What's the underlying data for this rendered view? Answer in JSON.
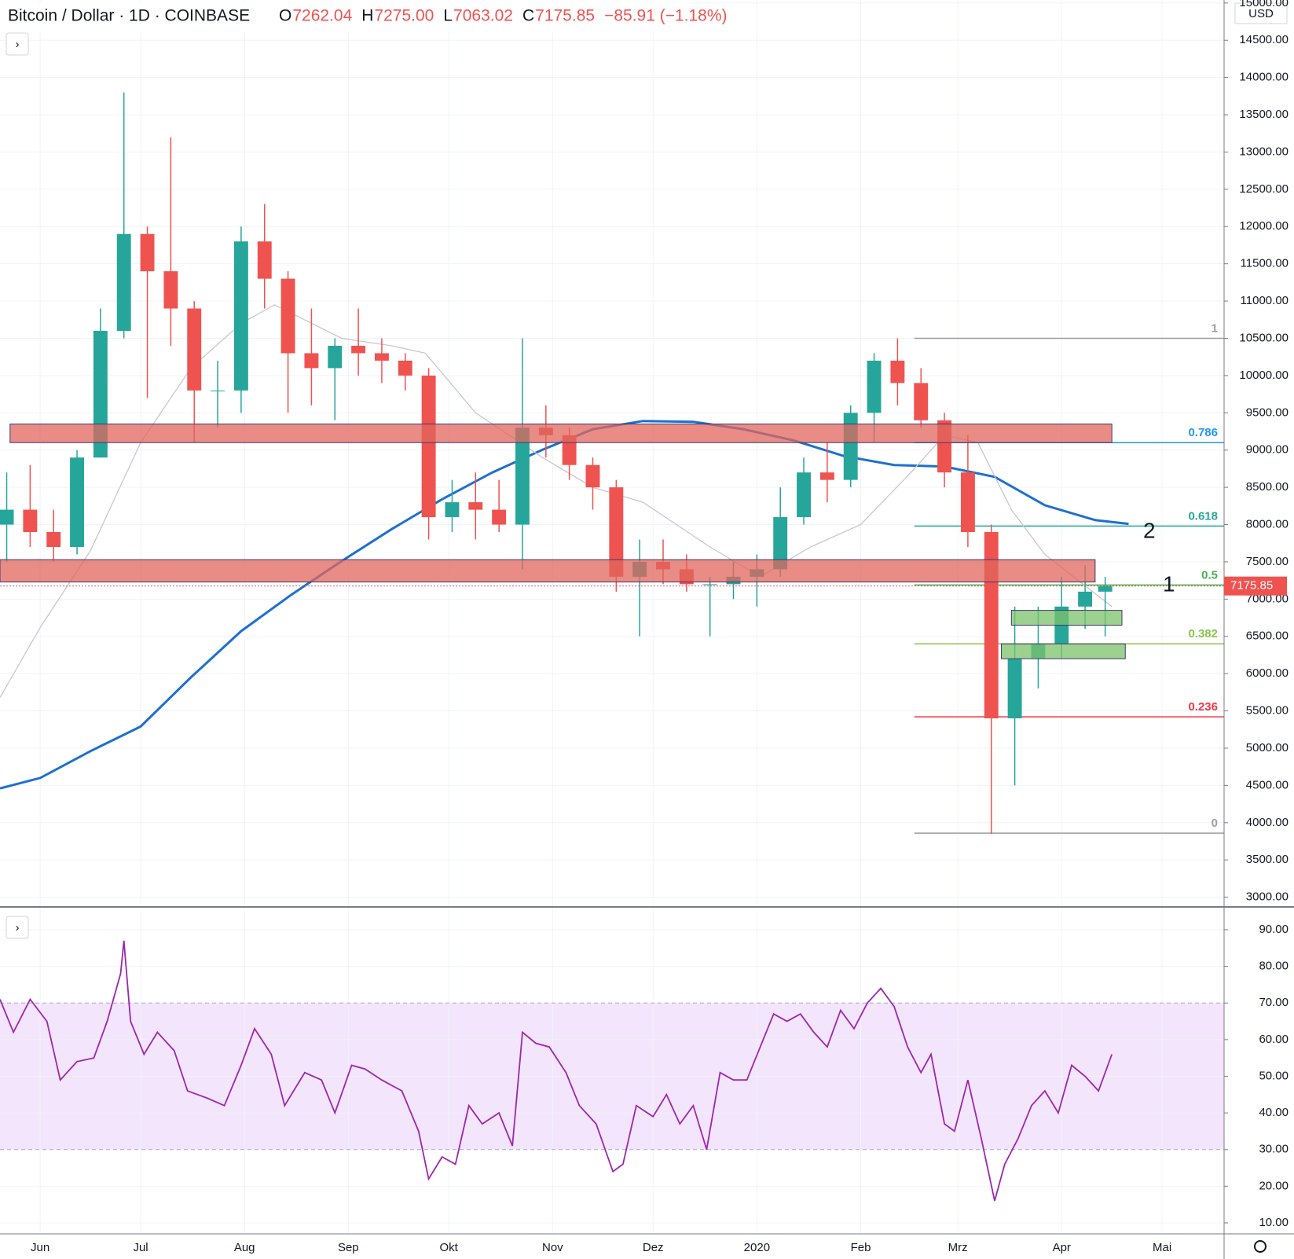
{
  "header": {
    "title": "Bitcoin / Dollar · 1D · COINBASE",
    "ohlc": [
      {
        "key": "O",
        "value": "7262.04"
      },
      {
        "key": "H",
        "value": "7275.00"
      },
      {
        "key": "L",
        "value": "7063.02"
      },
      {
        "key": "C",
        "value": "7175.85"
      }
    ],
    "change": "−85.91 (−1.18%)",
    "currency": "USD",
    "annotations": [
      "1",
      "2"
    ]
  },
  "chart_data": [
    {
      "type": "candlestick",
      "up_color": "#26a69a",
      "down_color": "#ef5350",
      "x": [
        -10,
        -3,
        4,
        11,
        18,
        25,
        32,
        39,
        46,
        53,
        60,
        67,
        74,
        81,
        88,
        95,
        102,
        109,
        116,
        123,
        130,
        137,
        144,
        151,
        158,
        165,
        172,
        179,
        186,
        193,
        200,
        207,
        214,
        221,
        228,
        235,
        242,
        249,
        256,
        263,
        270,
        277,
        284,
        291,
        298,
        305,
        312,
        318
      ],
      "open": [
        8000,
        8200,
        7900,
        7700,
        8900,
        10600,
        11900,
        11400,
        10900,
        9800,
        9800,
        11800,
        11300,
        10300,
        10100,
        10400,
        10300,
        10200,
        10000,
        8100,
        8300,
        8200,
        8000,
        9300,
        9200,
        8800,
        8500,
        7300,
        7500,
        7400,
        7200,
        7200,
        7300,
        7400,
        8100,
        8700,
        8600,
        9500,
        10200,
        9900,
        9400,
        8700,
        7900,
        5400,
        6200,
        6400,
        6900,
        7100
      ],
      "high": [
        8700,
        8800,
        8200,
        9000,
        10900,
        13800,
        12000,
        13200,
        11000,
        10200,
        12000,
        12300,
        11400,
        10900,
        10500,
        10900,
        10500,
        10300,
        10100,
        8600,
        8700,
        8600,
        10500,
        9600,
        9300,
        8900,
        8600,
        7800,
        7800,
        7600,
        7300,
        7500,
        7600,
        8500,
        8900,
        9100,
        9600,
        10300,
        10500,
        10100,
        9500,
        9200,
        8000,
        6900,
        6900,
        7300,
        7450,
        7300
      ],
      "low": [
        7500,
        7700,
        7500,
        7600,
        8900,
        10500,
        9700,
        10400,
        9100,
        9300,
        9500,
        10900,
        9500,
        9600,
        9400,
        10000,
        9900,
        9800,
        7800,
        7900,
        7800,
        7900,
        7400,
        8900,
        8600,
        8200,
        7100,
        6500,
        7200,
        7100,
        6500,
        7000,
        6900,
        7300,
        8000,
        8300,
        8500,
        9100,
        9600,
        9300,
        8500,
        7700,
        3850,
        4500,
        5800,
        6200,
        6600,
        6500
      ],
      "close": [
        8200,
        7900,
        7700,
        8900,
        10600,
        11900,
        11400,
        10900,
        9800,
        9800,
        11800,
        11300,
        10300,
        10100,
        10400,
        10300,
        10200,
        10000,
        8100,
        8300,
        8200,
        8000,
        9300,
        9200,
        8800,
        8500,
        7300,
        7500,
        7400,
        7200,
        7200,
        7300,
        7400,
        8100,
        8700,
        8600,
        9500,
        10200,
        9900,
        9400,
        8700,
        7900,
        5400,
        6200,
        6400,
        6900,
        7100,
        7175.85
      ],
      "overlays": [
        {
          "color": "#1e6fd0",
          "x": [
            -12,
            0,
            15,
            30,
            45,
            60,
            75,
            90,
            105,
            120,
            135,
            150,
            165,
            180,
            195,
            210,
            225,
            240,
            255,
            270,
            285,
            300,
            315,
            325
          ],
          "values": [
            4460,
            4600,
            4960,
            5290,
            5950,
            6570,
            7060,
            7510,
            7940,
            8340,
            8700,
            9005,
            9280,
            9390,
            9380,
            9280,
            9130,
            8920,
            8800,
            8780,
            8640,
            8260,
            8060,
            8010
          ]
        },
        {
          "color": "#c8c8cc",
          "x": [
            -12,
            0,
            15,
            30,
            45,
            60,
            70,
            90,
            105,
            115,
            130,
            150,
            165,
            180,
            200,
            215,
            230,
            245,
            260,
            270,
            280,
            290,
            300,
            320
          ],
          "values": [
            5680,
            6620,
            7650,
            9100,
            10100,
            10700,
            10950,
            10500,
            10400,
            10300,
            9500,
            8900,
            8500,
            8300,
            7700,
            7300,
            7700,
            8000,
            8700,
            9200,
            9100,
            8200,
            7600,
            6900
          ]
        }
      ],
      "zones": [
        {
          "low": 9100,
          "high": 9350,
          "start": -9,
          "end": 320,
          "color": "#e0665c"
        },
        {
          "low": 7230,
          "high": 7530,
          "start": -12,
          "end": 315,
          "color": "#e0665c"
        },
        {
          "low": 6650,
          "high": 6850,
          "start": 290,
          "end": 323,
          "color": "#7cc26a"
        },
        {
          "low": 6200,
          "high": 6400,
          "start": 287,
          "end": 324,
          "color": "#7cc26a"
        }
      ],
      "fib_start": 261,
      "fib_levels": [
        {
          "ratio": 1,
          "price": 10500,
          "color": "#9e9e9e"
        },
        {
          "ratio": 0.786,
          "price": 9100,
          "color": "#2196f3"
        },
        {
          "ratio": 0.618,
          "price": 7980,
          "color": "#26a69a"
        },
        {
          "ratio": 0.5,
          "price": 7190,
          "color": "#4caf50"
        },
        {
          "ratio": 0.382,
          "price": 6400,
          "color": "#8bc34a"
        },
        {
          "ratio": 0.236,
          "price": 5420,
          "color": "#f23645"
        },
        {
          "ratio": 0,
          "price": 3860,
          "color": "#9e9e9e"
        }
      ],
      "last_price": 7175.85,
      "xlim": [
        -12,
        353.5
      ],
      "ylim": [
        2880,
        15040
      ],
      "xticks": [
        {
          "value": 0,
          "label": "Jun"
        },
        {
          "value": 30,
          "label": "Jul"
        },
        {
          "value": 61,
          "label": "Aug"
        },
        {
          "value": 92,
          "label": "Sep"
        },
        {
          "value": 122,
          "label": "Okt"
        },
        {
          "value": 153,
          "label": "Nov"
        },
        {
          "value": 183,
          "label": "Dez"
        },
        {
          "value": 214,
          "label": "2020"
        },
        {
          "value": 245,
          "label": "Feb"
        },
        {
          "value": 274,
          "label": "Mrz"
        },
        {
          "value": 305,
          "label": "Apr"
        },
        {
          "value": 335,
          "label": "Mai"
        }
      ],
      "yticks": [
        {
          "value": 3000,
          "label": "3000.00"
        },
        {
          "value": 3500,
          "label": "3500.00"
        },
        {
          "value": 4000,
          "label": "4000.00"
        },
        {
          "value": 4500,
          "label": "4500.00"
        },
        {
          "value": 5000,
          "label": "5000.00"
        },
        {
          "value": 5500,
          "label": "5500.00"
        },
        {
          "value": 6000,
          "label": "6000.00"
        },
        {
          "value": 6500,
          "label": "6500.00"
        },
        {
          "value": 7000,
          "label": "7000.00"
        },
        {
          "value": 7500,
          "label": "7500.00"
        },
        {
          "value": 8000,
          "label": "8000.00"
        },
        {
          "value": 8500,
          "label": "8500.00"
        },
        {
          "value": 9000,
          "label": "9000.00"
        },
        {
          "value": 9500,
          "label": "9500.00"
        },
        {
          "value": 10000,
          "label": "10000.00"
        },
        {
          "value": 10500,
          "label": "10500.00"
        },
        {
          "value": 11000,
          "label": "11000.00"
        },
        {
          "value": 11500,
          "label": "11500.00"
        },
        {
          "value": 12000,
          "label": "12000.00"
        },
        {
          "value": 12500,
          "label": "12500.00"
        },
        {
          "value": 13000,
          "label": "13000.00"
        },
        {
          "value": 13500,
          "label": "13500.00"
        },
        {
          "value": 14000,
          "label": "14000.00"
        },
        {
          "value": 14500,
          "label": "14500.00"
        },
        {
          "value": 15000,
          "label": "15000.00"
        }
      ],
      "grid": true
    },
    {
      "type": "line",
      "color": "#9c27b0",
      "band": [
        30,
        70
      ],
      "band_color": "#f3e5fb",
      "x": [
        -12,
        -8,
        -3,
        2,
        6,
        11,
        16,
        20,
        24,
        25,
        27,
        31,
        35,
        40,
        44,
        50,
        55,
        60,
        64,
        69,
        73,
        79,
        84,
        88,
        93,
        97,
        102,
        108,
        113,
        116,
        120,
        124,
        128,
        132,
        137,
        141,
        144,
        148,
        152,
        157,
        161,
        166,
        171,
        174,
        178,
        183,
        187,
        191,
        195,
        199,
        203,
        207,
        211,
        215,
        219,
        223,
        227,
        231,
        235,
        239,
        243,
        247,
        251,
        255,
        259,
        263,
        266,
        270,
        273,
        277,
        281,
        285,
        288,
        292,
        296,
        300,
        304,
        308,
        312,
        316,
        320
      ],
      "values": [
        71,
        62,
        71,
        65,
        49,
        54,
        55,
        65,
        78,
        87,
        65,
        56,
        62,
        57,
        46,
        44,
        42,
        53,
        63,
        56,
        42,
        51,
        49,
        40,
        53,
        52,
        49,
        46,
        35,
        22,
        28,
        26,
        42,
        37,
        40,
        31,
        62,
        59,
        58,
        51,
        42,
        37,
        24,
        26,
        42,
        39,
        45,
        37,
        42,
        30,
        51,
        49,
        49,
        58,
        67,
        65,
        67,
        62,
        58,
        68,
        63,
        70,
        74,
        69,
        58,
        51,
        56,
        37,
        35,
        49,
        33,
        16,
        26,
        33,
        42,
        46,
        40,
        53,
        50,
        46,
        56
      ],
      "xlim": [
        -12,
        353.5
      ],
      "ylim": [
        7,
        96
      ],
      "xticks": [
        {
          "value": 0,
          "label": "Jun"
        },
        {
          "value": 30,
          "label": "Jul"
        },
        {
          "value": 61,
          "label": "Aug"
        },
        {
          "value": 92,
          "label": "Sep"
        },
        {
          "value": 122,
          "label": "Okt"
        },
        {
          "value": 153,
          "label": "Nov"
        },
        {
          "value": 183,
          "label": "Dez"
        },
        {
          "value": 214,
          "label": "2020"
        },
        {
          "value": 245,
          "label": "Feb"
        },
        {
          "value": 274,
          "label": "Mrz"
        },
        {
          "value": 305,
          "label": "Apr"
        },
        {
          "value": 335,
          "label": "Mai"
        }
      ],
      "yticks": [
        {
          "value": 10,
          "label": "10.00"
        },
        {
          "value": 20,
          "label": "20.00"
        },
        {
          "value": 30,
          "label": "30.00"
        },
        {
          "value": 40,
          "label": "40.00"
        },
        {
          "value": 50,
          "label": "50.00"
        },
        {
          "value": 60,
          "label": "60.00"
        },
        {
          "value": 70,
          "label": "70.00"
        },
        {
          "value": 80,
          "label": "80.00"
        },
        {
          "value": 90,
          "label": "90.00"
        }
      ],
      "grid": true
    }
  ]
}
